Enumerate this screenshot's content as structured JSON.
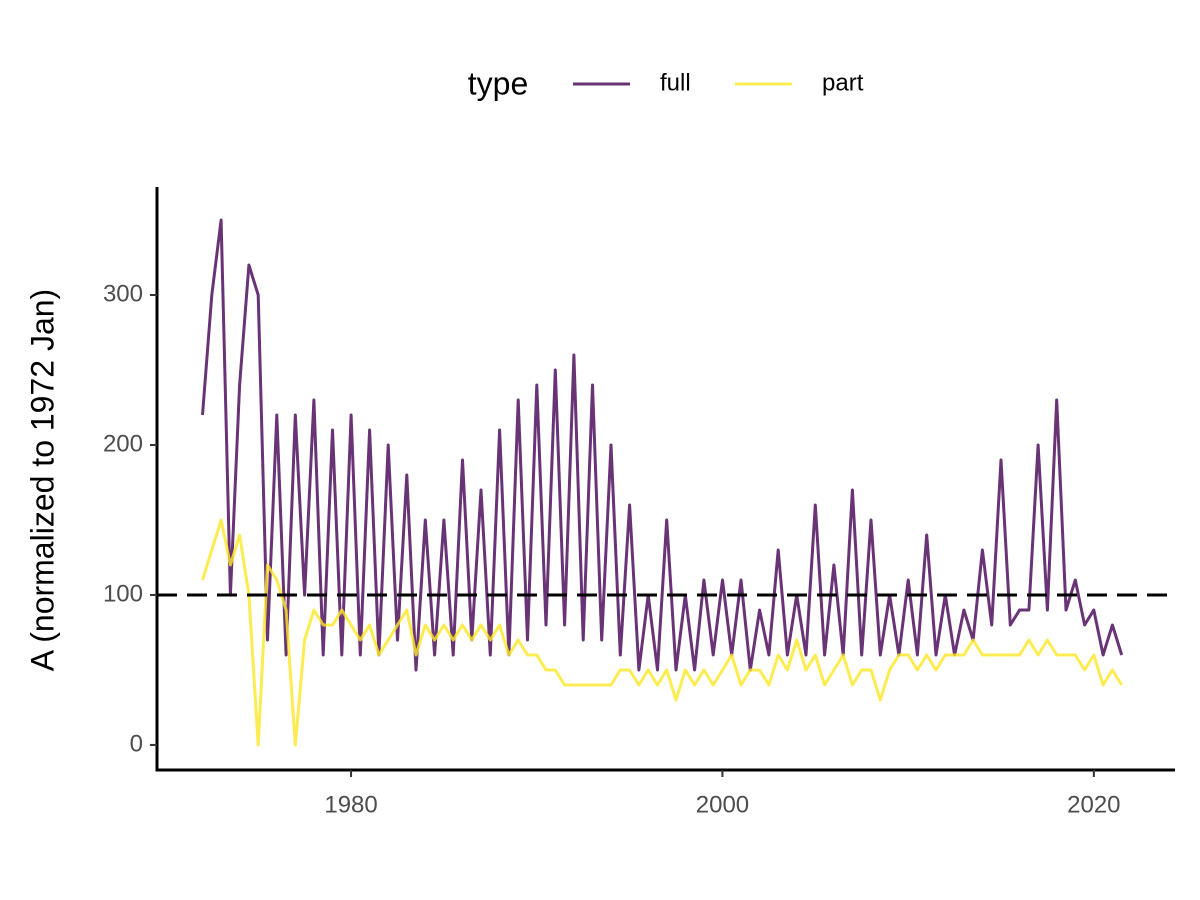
{
  "chart_data": {
    "type": "line",
    "y_label": "A (normalized to 1972 Jan)",
    "legend_title": "type",
    "legend_position": "top",
    "alpha": 0.8,
    "hline": 100,
    "x": [
      1972,
      1972.5,
      1973,
      1973.5,
      1974,
      1974.5,
      1975,
      1975.5,
      1976,
      1976.5,
      1977,
      1977.5,
      1978,
      1978.5,
      1979,
      1979.5,
      1980,
      1980.5,
      1981,
      1981.5,
      1982,
      1982.5,
      1983,
      1983.5,
      1984,
      1984.5,
      1985,
      1985.5,
      1986,
      1986.5,
      1987,
      1987.5,
      1988,
      1988.5,
      1989,
      1989.5,
      1990,
      1990.5,
      1991,
      1991.5,
      1992,
      1992.5,
      1993,
      1993.5,
      1994,
      1994.5,
      1995,
      1995.5,
      1996,
      1996.5,
      1997,
      1997.5,
      1998,
      1998.5,
      1999,
      1999.5,
      2000,
      2000.5,
      2001,
      2001.5,
      2002,
      2002.5,
      2003,
      2003.5,
      2004,
      2004.5,
      2005,
      2005.5,
      2006,
      2006.5,
      2007,
      2007.5,
      2008,
      2008.5,
      2009,
      2009.5,
      2010,
      2010.5,
      2011,
      2011.5,
      2012,
      2012.5,
      2013,
      2013.5,
      2014,
      2014.5,
      2015,
      2015.5,
      2016,
      2016.5,
      2017,
      2017.5,
      2018,
      2018.5,
      2019,
      2019.5,
      2020,
      2020.5,
      2021,
      2021.5
    ],
    "series": [
      {
        "name": "full",
        "color": "#440154",
        "values": [
          220,
          300,
          350,
          100,
          240,
          320,
          300,
          70,
          220,
          60,
          220,
          100,
          230,
          60,
          210,
          60,
          220,
          60,
          210,
          60,
          200,
          70,
          180,
          50,
          150,
          60,
          150,
          60,
          190,
          70,
          170,
          60,
          210,
          60,
          230,
          70,
          240,
          80,
          250,
          80,
          260,
          70,
          240,
          70,
          200,
          60,
          160,
          50,
          100,
          50,
          150,
          50,
          100,
          50,
          110,
          60,
          110,
          60,
          110,
          50,
          90,
          60,
          130,
          60,
          100,
          60,
          160,
          60,
          120,
          60,
          170,
          60,
          150,
          60,
          100,
          60,
          110,
          60,
          140,
          60,
          100,
          60,
          90,
          70,
          130,
          80,
          190,
          80,
          90,
          90,
          200,
          90,
          230,
          90,
          110,
          80,
          90,
          60,
          80,
          60
        ]
      },
      {
        "name": "part",
        "color": "#fde725",
        "values": [
          110,
          130,
          150,
          120,
          140,
          100,
          0,
          120,
          110,
          90,
          0,
          70,
          90,
          80,
          80,
          90,
          80,
          70,
          80,
          60,
          70,
          80,
          90,
          60,
          80,
          70,
          80,
          70,
          80,
          70,
          80,
          70,
          80,
          60,
          70,
          60,
          60,
          50,
          50,
          40,
          40,
          40,
          40,
          40,
          40,
          50,
          50,
          40,
          50,
          40,
          50,
          30,
          50,
          40,
          50,
          40,
          50,
          60,
          40,
          50,
          50,
          40,
          60,
          50,
          70,
          50,
          60,
          40,
          50,
          60,
          40,
          50,
          50,
          30,
          50,
          60,
          60,
          50,
          60,
          50,
          60,
          60,
          60,
          70,
          60,
          60,
          60,
          60,
          60,
          70,
          60,
          70,
          60,
          60,
          60,
          50,
          60,
          40,
          50,
          40
        ]
      }
    ],
    "xlim": [
      1969.55,
      2024.37
    ],
    "ylim": [
      -16.7,
      372
    ],
    "xticks": [
      1980,
      2000,
      2020
    ],
    "yticks": [
      0,
      100,
      200,
      300
    ],
    "grid": false
  }
}
